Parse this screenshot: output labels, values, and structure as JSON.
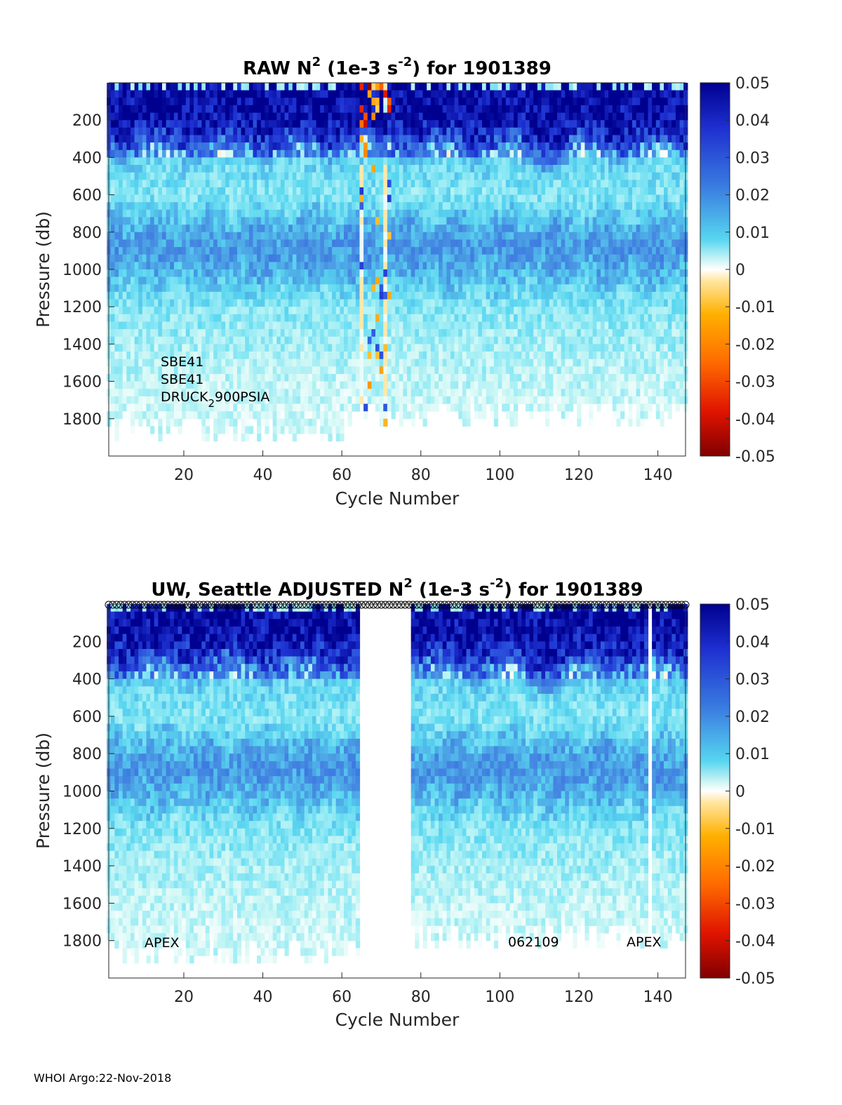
{
  "footer": "WHOI Argo:22-Nov-2018",
  "chart_data": [
    {
      "type": "heatmap",
      "title_main": "RAW N",
      "title_sup1": "2",
      "title_mid": " (1e-3 s",
      "title_sup2": "-2",
      "title_end": ") for 1901389",
      "xlabel": "Cycle Number",
      "ylabel": "Pressure (db)",
      "xlim": [
        1,
        147
      ],
      "ylim": [
        2000,
        0
      ],
      "xticks": [
        "20",
        "40",
        "60",
        "80",
        "100",
        "120",
        "140"
      ],
      "yticks": [
        "200",
        "400",
        "600",
        "800",
        "1000",
        "1200",
        "1400",
        "1600",
        "1800"
      ],
      "colorbar_ticks": [
        "0.05",
        "0.04",
        "0.03",
        "0.02",
        "0.01",
        "0",
        "-0.01",
        "-0.02",
        "-0.03",
        "-0.04",
        "-0.05"
      ],
      "clim": [
        -0.05,
        0.05
      ],
      "colormap": "blue-cyan-white-yellow-red",
      "grid": false,
      "annotations": [
        "SBE41",
        "SBE41",
        "DRUCK",
        "2",
        "900PSIA"
      ],
      "cycles_with_noisy_data": [
        64,
        73
      ],
      "profile_depth_db": [
        {
          "cycles": [
            1,
            60
          ],
          "max": 1940
        },
        {
          "cycles": [
            61,
            147
          ],
          "max": 1850
        }
      ],
      "profile_levels_db": [
        {
          "p": 100,
          "n2": 0.048
        },
        {
          "p": 200,
          "n2": 0.045
        },
        {
          "p": 300,
          "n2": 0.033
        },
        {
          "p": 400,
          "n2": 0.012
        },
        {
          "p": 600,
          "n2": 0.009
        },
        {
          "p": 800,
          "n2": 0.016
        },
        {
          "p": 900,
          "n2": 0.018
        },
        {
          "p": 1000,
          "n2": 0.015
        },
        {
          "p": 1200,
          "n2": 0.009
        },
        {
          "p": 1400,
          "n2": 0.007
        },
        {
          "p": 1600,
          "n2": 0.005
        },
        {
          "p": 1800,
          "n2": 0.004
        }
      ]
    },
    {
      "type": "heatmap",
      "title_main": "UW, Seattle  ADJUSTED N",
      "title_sup1": "2",
      "title_mid": " (1e-3 s",
      "title_sup2": "-2",
      "title_end": ") for 1901389",
      "xlabel": "Cycle Number",
      "ylabel": "Pressure (db)",
      "xlim": [
        1,
        147
      ],
      "ylim": [
        2000,
        0
      ],
      "xticks": [
        "20",
        "40",
        "60",
        "80",
        "100",
        "120",
        "140"
      ],
      "yticks": [
        "200",
        "400",
        "600",
        "800",
        "1000",
        "1200",
        "1400",
        "1600",
        "1800"
      ],
      "colorbar_ticks": [
        "0.05",
        "0.04",
        "0.03",
        "0.02",
        "0.01",
        "0",
        "-0.01",
        "-0.02",
        "-0.03",
        "-0.04",
        "-0.05"
      ],
      "clim": [
        -0.05,
        0.05
      ],
      "colormap": "blue-cyan-white-yellow-red",
      "grid": false,
      "annotations": [
        "APEX",
        "062109",
        "APEX"
      ],
      "missing_cycles": [
        [
          65,
          77
        ],
        [
          138,
          138
        ]
      ],
      "profile_depth_db": [
        {
          "cycles": [
            1,
            64
          ],
          "max": 1910
        },
        {
          "cycles": [
            78,
            147
          ],
          "max": 1850
        }
      ],
      "profile_levels_db": [
        {
          "p": 100,
          "n2": 0.047
        },
        {
          "p": 200,
          "n2": 0.043
        },
        {
          "p": 300,
          "n2": 0.03
        },
        {
          "p": 400,
          "n2": 0.012
        },
        {
          "p": 600,
          "n2": 0.009
        },
        {
          "p": 800,
          "n2": 0.016
        },
        {
          "p": 900,
          "n2": 0.018
        },
        {
          "p": 1000,
          "n2": 0.015
        },
        {
          "p": 1200,
          "n2": 0.009
        },
        {
          "p": 1400,
          "n2": 0.007
        },
        {
          "p": 1600,
          "n2": 0.005
        },
        {
          "p": 1800,
          "n2": 0.004
        }
      ]
    }
  ]
}
